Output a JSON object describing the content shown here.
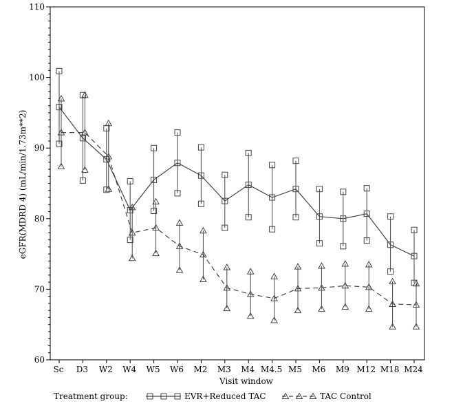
{
  "chart_data": {
    "type": "line",
    "xlabel": "Visit window",
    "ylabel": "eGFR(MDRD 4) (mL/min/1.73m**2)",
    "ylim": [
      60,
      110
    ],
    "yticks": [
      60,
      70,
      80,
      90,
      100,
      110
    ],
    "y_minor_tick_step": 1,
    "grid": false,
    "legend_title": "Treatment group:",
    "legend_position": "bottom",
    "categories": [
      "Sc",
      "D3",
      "W2",
      "W4",
      "W5",
      "W6",
      "M2",
      "M3",
      "M4",
      "M4.5",
      "M5",
      "M6",
      "M9",
      "M12",
      "M18",
      "M24"
    ],
    "series": [
      {
        "name": "EVR+Reduced TAC",
        "marker": "square",
        "line_style": "solid",
        "color": "#444444",
        "mean": [
          95.8,
          91.4,
          88.4,
          81.2,
          85.5,
          87.9,
          86.1,
          82.5,
          84.8,
          83.0,
          84.2,
          80.3,
          80.0,
          80.7,
          76.3,
          74.7
        ],
        "upper": [
          100.9,
          97.5,
          92.8,
          85.3,
          90.0,
          92.2,
          90.1,
          86.2,
          89.3,
          87.6,
          88.2,
          84.2,
          83.8,
          84.3,
          80.3,
          78.4
        ],
        "lower": [
          90.6,
          85.4,
          84.1,
          77.0,
          81.1,
          83.6,
          82.1,
          78.7,
          80.2,
          78.5,
          80.2,
          76.5,
          76.1,
          76.9,
          72.5,
          70.9
        ]
      },
      {
        "name": "TAC Control",
        "marker": "triangle",
        "line_style": "dashed",
        "color": "#444444",
        "mean": [
          92.2,
          92.2,
          88.8,
          78.0,
          78.7,
          76.1,
          74.9,
          70.2,
          69.3,
          68.7,
          70.1,
          70.2,
          70.5,
          70.3,
          67.9,
          67.8
        ],
        "upper": [
          97.0,
          97.5,
          93.5,
          81.6,
          82.4,
          79.4,
          78.3,
          73.1,
          72.5,
          71.8,
          73.2,
          73.3,
          73.6,
          73.5,
          71.1,
          70.8
        ],
        "lower": [
          87.4,
          86.9,
          84.2,
          74.4,
          75.1,
          72.7,
          71.4,
          67.3,
          66.2,
          65.6,
          67.0,
          67.2,
          67.5,
          67.2,
          64.7,
          64.7
        ]
      }
    ]
  }
}
